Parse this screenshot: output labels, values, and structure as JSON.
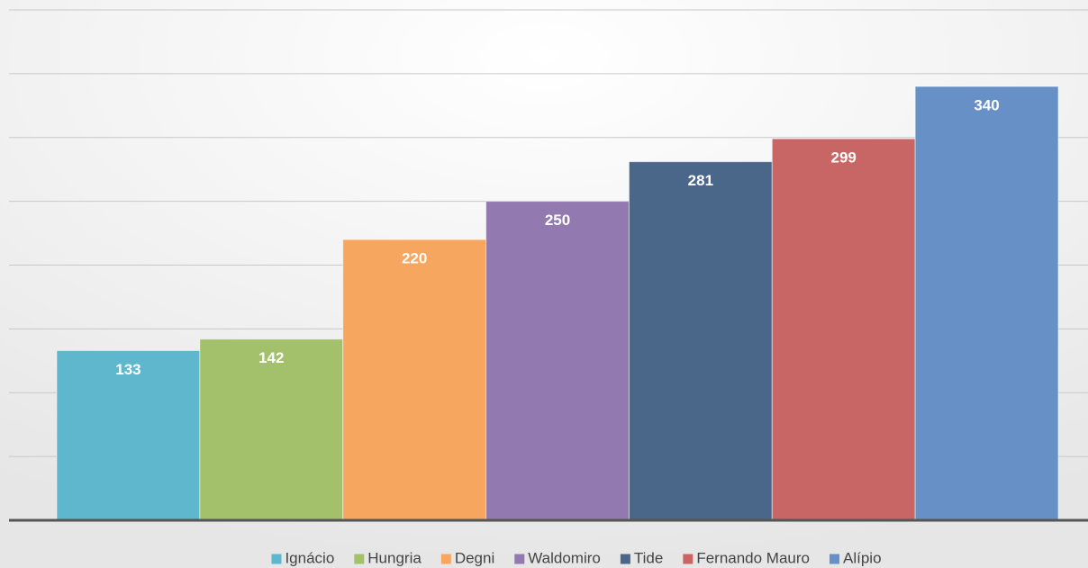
{
  "chart_data": {
    "type": "bar",
    "series": [
      {
        "name": "Ignácio",
        "color": "#5fb7cd",
        "values": [
          133
        ]
      },
      {
        "name": "Hungria",
        "color": "#a3c16b",
        "values": [
          142
        ]
      },
      {
        "name": "Degni",
        "color": "#f7a660",
        "values": [
          220
        ]
      },
      {
        "name": "Waldomiro",
        "color": "#927ab0",
        "values": [
          250
        ]
      },
      {
        "name": "Tide",
        "color": "#4a6689",
        "values": [
          281
        ]
      },
      {
        "name": "Fernando Mauro",
        "color": "#c86565",
        "values": [
          299
        ]
      },
      {
        "name": "Alípio",
        "color": "#6791c6",
        "values": [
          340
        ]
      }
    ],
    "ylim": [
      0,
      400
    ],
    "yticks": [
      0,
      50,
      100,
      150,
      200,
      250,
      300,
      350,
      400
    ],
    "grid": true,
    "legend": "bottom"
  }
}
